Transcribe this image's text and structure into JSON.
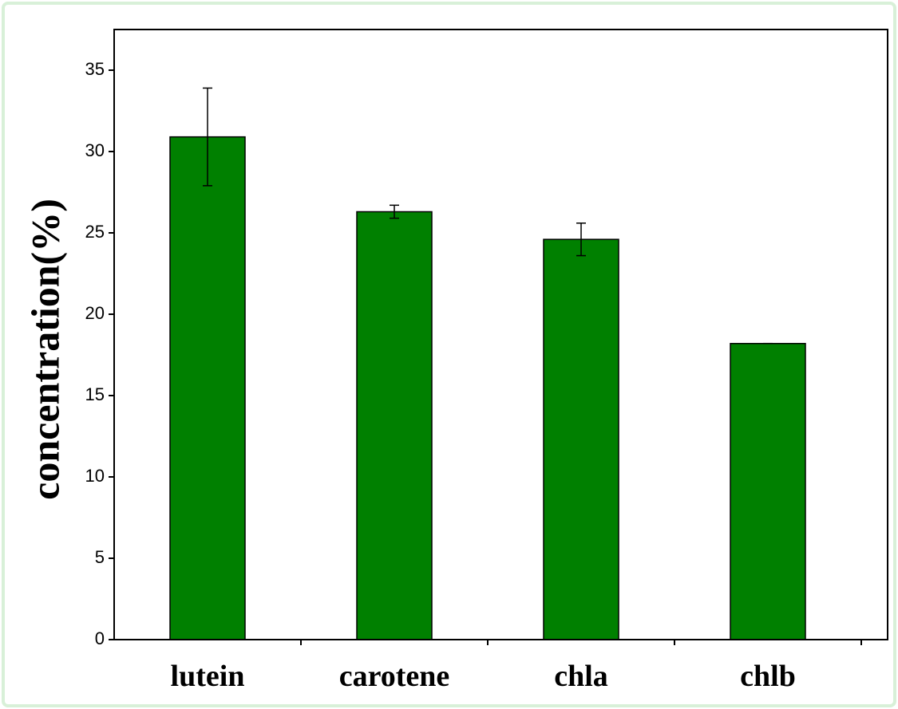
{
  "chart_data": {
    "type": "bar",
    "y_label": "concentration(%)",
    "categories": [
      "lutein",
      "carotene",
      "chla",
      "chlb"
    ],
    "values": [
      30.9,
      26.3,
      24.6,
      18.2
    ],
    "errors": [
      3.0,
      0.4,
      1.0,
      0
    ],
    "color": "#008000",
    "ylim": [
      0,
      37.5
    ],
    "yticks": [
      0,
      5,
      10,
      15,
      20,
      25,
      30,
      35
    ]
  }
}
